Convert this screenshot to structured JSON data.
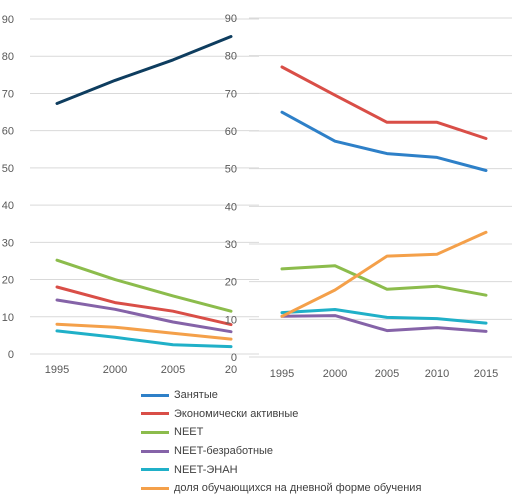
{
  "chart_data": [
    {
      "type": "line",
      "x": [
        "1995",
        "2000",
        "2005",
        "20"
      ],
      "ylim": [
        0,
        90
      ],
      "yticks": [
        0,
        10,
        20,
        30,
        40,
        50,
        60,
        70,
        80,
        90
      ],
      "grid": true,
      "series": [
        {
          "name": "Занятые",
          "color": "#0e3d5f",
          "values": [
            67.3,
            73.5,
            79.0,
            85.3
          ]
        },
        {
          "name": "Экономически активные",
          "color": "#d94e47",
          "values": [
            18.0,
            13.8,
            11.5,
            7.9
          ]
        },
        {
          "name": "NEET",
          "color": "#8cbc4c",
          "values": [
            25.2,
            20.0,
            15.6,
            11.5
          ]
        },
        {
          "name": "NEET-безработные",
          "color": "#8563a8",
          "values": [
            14.5,
            12.0,
            8.6,
            6.0
          ]
        },
        {
          "name": "NEET-ЭНАН",
          "color": "#20b0c8",
          "values": [
            6.2,
            4.5,
            2.5,
            2.0
          ]
        },
        {
          "name": "доля обучающихся на дневной форме обучения",
          "color": "#f4a04a",
          "values": [
            8.0,
            7.2,
            5.6,
            4.0
          ]
        }
      ]
    },
    {
      "type": "line",
      "x": [
        "1995",
        "2000",
        "2005",
        "2010",
        "2015"
      ],
      "ylim": [
        0,
        90
      ],
      "yticks": [
        0,
        10,
        20,
        30,
        40,
        50,
        60,
        70,
        80,
        90
      ],
      "grid": true,
      "series": [
        {
          "name": "Занятые",
          "color": "#2e80c8",
          "values": [
            65.0,
            57.3,
            54.0,
            53.0,
            49.5
          ]
        },
        {
          "name": "Экономически активные",
          "color": "#d94e47",
          "values": [
            77.0,
            69.5,
            62.3,
            62.3,
            58.0
          ]
        },
        {
          "name": "NEET",
          "color": "#8cbc4c",
          "values": [
            23.4,
            24.2,
            18.0,
            18.8,
            16.4
          ]
        },
        {
          "name": "NEET-безработные",
          "color": "#8563a8",
          "values": [
            10.8,
            11.0,
            7.0,
            7.8,
            6.8
          ]
        },
        {
          "name": "NEET-ЭНАН",
          "color": "#20b0c8",
          "values": [
            11.8,
            12.6,
            10.5,
            10.2,
            9.0
          ]
        },
        {
          "name": "доля обучающихся на дневной форме обучения",
          "color": "#f4a04a",
          "values": [
            10.8,
            17.8,
            26.8,
            27.3,
            33.1
          ]
        }
      ]
    }
  ],
  "legend": {
    "placement": "bottom",
    "items": [
      {
        "label": "Занятые",
        "color": "#2e80c8"
      },
      {
        "label": "Экономически активные",
        "color": "#d94e47"
      },
      {
        "label": "NEET",
        "color": "#8cbc4c"
      },
      {
        "label": "NEET-безработные",
        "color": "#8563a8"
      },
      {
        "label": "NEET-ЭНАН",
        "color": "#20b0c8"
      },
      {
        "label": "доля обучающихся на дневной форме обучения",
        "color": "#f4a04a"
      }
    ]
  }
}
